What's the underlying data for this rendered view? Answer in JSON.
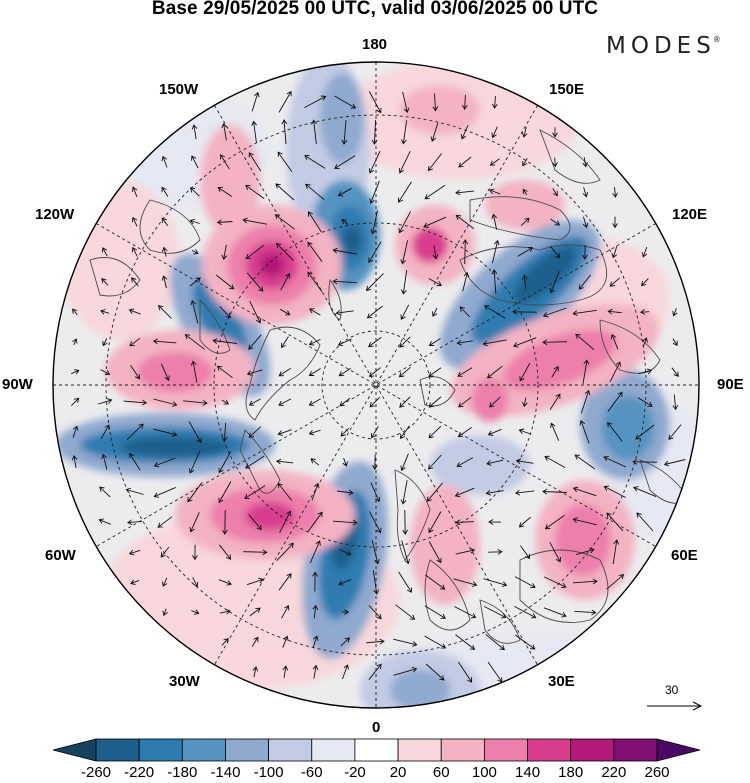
{
  "title": "Base 29/05/2025 00 UTC, valid 03/06/2025 00 UTC",
  "brand": "MODES",
  "brand_mark": "®",
  "meridian_labels": {
    "top": "180",
    "bottom": "0",
    "left": "90W",
    "right": "90E",
    "w150": "150W",
    "e150": "150E",
    "w120": "120W",
    "e120": "120E",
    "w60": "60W",
    "e60": "60E",
    "w30": "30W",
    "e30": "30E"
  },
  "reference_vector": "30",
  "colorbar": {
    "tick_labels": [
      "-260",
      "-220",
      "-180",
      "-140",
      "-100",
      "-60",
      "-20",
      "20",
      "60",
      "100",
      "140",
      "180",
      "220",
      "260"
    ],
    "colors": [
      "#15425f",
      "#1f5f8b",
      "#2e7bb0",
      "#5593c0",
      "#8fa9cf",
      "#c2cbe4",
      "#e6e8f3",
      "#ffffff",
      "#f8d8dc",
      "#f3b3c3",
      "#ec7fab",
      "#d83c8e",
      "#b3187a",
      "#7f0f70",
      "#4a0a63"
    ]
  },
  "icons": [
    "north-pole-projection-map",
    "wind-vector-arrows",
    "coastline-outline",
    "reference-arrow-icon"
  ]
}
